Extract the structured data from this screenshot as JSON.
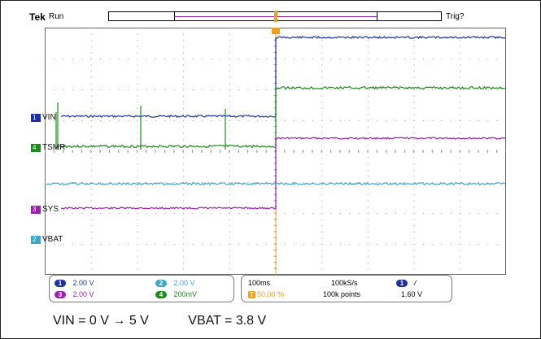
{
  "header": {
    "brand": "Tek",
    "state": "Run",
    "trigger_status": "Trig?"
  },
  "channels": {
    "ch1": {
      "number": "1",
      "label": "VIN",
      "color": "#1a2faa"
    },
    "tsmr": {
      "number": "4",
      "label": "TSMR",
      "color": "#1d8a1d"
    },
    "ch3": {
      "number": "3",
      "label": "SYS",
      "color": "#9b1fb0"
    },
    "ch2": {
      "number": "2",
      "label": "VBAT",
      "color": "#3aa8c8"
    }
  },
  "trigger_marker": "T",
  "readout": {
    "scales": [
      {
        "num": "1",
        "value": "2.00 V",
        "color": "#1a2faa"
      },
      {
        "num": "2",
        "value": "2.00 V",
        "color": "#3aa8c8"
      },
      {
        "num": "3",
        "value": "2.00 V",
        "color": "#9b1fb0"
      },
      {
        "num": "4",
        "value": "200mV",
        "color": "#1d8a1d"
      }
    ],
    "timebase": "100ms",
    "sample_rate": "100kS/s",
    "trigger_pos": "50.00 %",
    "record_length": "100k points",
    "trig_source": "1",
    "trig_slope": "/",
    "trig_level": "1.60 V"
  },
  "caption": {
    "vin": "VIN = 0 V → 5 V",
    "vbat": "VBAT = 3.8 V"
  }
}
